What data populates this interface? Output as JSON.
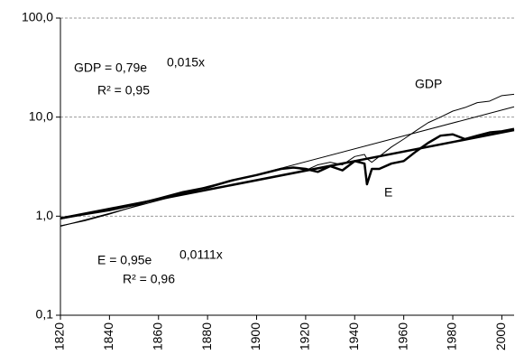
{
  "chart_data": {
    "type": "line",
    "log_scale_y": true,
    "grid": true,
    "x": [
      1820,
      1830,
      1840,
      1850,
      1860,
      1870,
      1880,
      1890,
      1900,
      1910,
      1915,
      1920,
      1925,
      1930,
      1935,
      1940,
      1944,
      1945,
      1947,
      1950,
      1955,
      1960,
      1965,
      1970,
      1975,
      1980,
      1985,
      1990,
      1995,
      2000,
      2005
    ],
    "series": [
      {
        "name": "GDP",
        "color": "#000000",
        "line_width": 1,
        "values": [
          0.8,
          0.9,
          1.05,
          1.25,
          1.5,
          1.7,
          2.0,
          2.3,
          2.6,
          3.0,
          3.1,
          2.9,
          3.3,
          3.5,
          3.3,
          4.0,
          4.2,
          3.8,
          3.5,
          4.0,
          5.0,
          6.0,
          7.3,
          8.8,
          10,
          11.5,
          12.5,
          14,
          14.5,
          16.5,
          17
        ]
      },
      {
        "name": "E",
        "color": "#000000",
        "line_width": 2.5,
        "values": [
          0.95,
          1.05,
          1.15,
          1.3,
          1.5,
          1.75,
          1.95,
          2.3,
          2.6,
          3.0,
          3.1,
          3.0,
          2.8,
          3.2,
          2.9,
          3.6,
          3.4,
          2.1,
          3.0,
          3.0,
          3.4,
          3.6,
          4.5,
          5.5,
          6.5,
          6.7,
          6.0,
          6.5,
          7.0,
          7.2,
          7.6
        ]
      },
      {
        "color": "#000000",
        "line_width": 1,
        "x": [
          1820,
          2005
        ],
        "values": [
          0.79,
          12.7
        ]
      },
      {
        "color": "#000000",
        "line_width": 2.5,
        "x": [
          1820,
          2005
        ],
        "values": [
          0.95,
          7.4
        ]
      }
    ],
    "annotations": [
      "GDP = 0,79e",
      "0,015x",
      "R² = 0,95",
      "GDP",
      "E",
      "E = 0,95e",
      "0,0111x",
      "R² = 0,96"
    ],
    "xlim": [
      1820,
      2005
    ],
    "xticks": [
      1820,
      1840,
      1860,
      1880,
      1900,
      1920,
      1940,
      1960,
      1980,
      2000
    ],
    "ylim": [
      0.1,
      100
    ],
    "yticks": [
      {
        "value": 0.1,
        "label": "0,1"
      },
      {
        "value": 1,
        "label": "1,0"
      },
      {
        "value": 10,
        "label": "10,0"
      },
      {
        "value": 100,
        "label": "100,0"
      }
    ]
  }
}
